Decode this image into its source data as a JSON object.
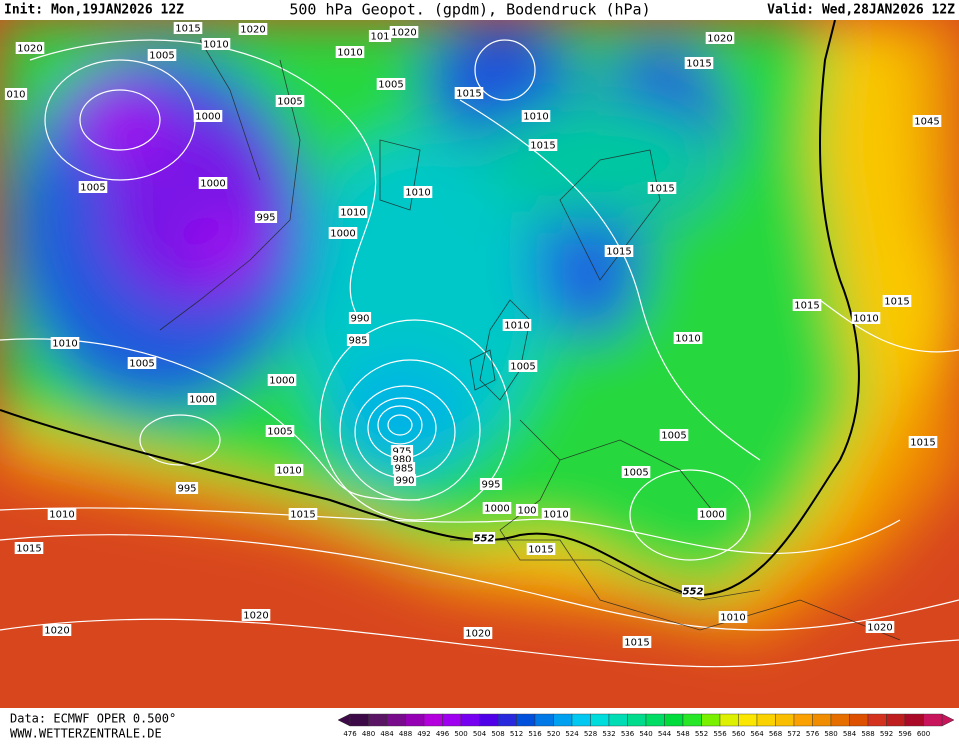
{
  "header": {
    "init": "Init: Mon,19JAN2026 12Z",
    "title": "500 hPa Geopot. (gpdm), Bodendruck (hPa)",
    "valid": "Valid: Wed,28JAN2026 12Z"
  },
  "footer": {
    "data": "Data: ECMWF OPER 0.500°",
    "site": "WWW.WETTERZENTRALE.DE"
  },
  "isobar_labels": [
    "1015",
    "1020",
    "1010",
    "1020",
    "1005",
    "010",
    "1010",
    "101",
    "1020",
    "1005",
    "1005",
    "1015",
    "1020",
    "1015",
    "1010",
    "1000",
    "1015",
    "1005",
    "1000",
    "1010",
    "1010",
    "1000",
    "995",
    "1015",
    "1015",
    "1045",
    "1015",
    "1015",
    "1010",
    "1010",
    "1005",
    "990",
    "985",
    "1010",
    "1010",
    "1000",
    "1005",
    "1000",
    "1005",
    "1005",
    "1015",
    "1010",
    "1005",
    "995",
    "995",
    "990",
    "975",
    "980",
    "985",
    "1010",
    "1015",
    "1000",
    "100",
    "1010",
    "1000",
    "1015",
    "1015",
    "1020",
    "1020",
    "1020",
    "1010",
    "1015",
    "1020",
    "552",
    "552"
  ],
  "colorbar": {
    "labels": [
      476,
      480,
      484,
      488,
      492,
      496,
      500,
      504,
      508,
      512,
      516,
      520,
      524,
      528,
      532,
      536,
      540,
      544,
      548,
      552,
      556,
      560,
      564,
      568,
      572,
      576,
      580,
      584,
      588,
      592,
      596,
      600
    ],
    "colors": [
      "#3c0a46",
      "#5a1464",
      "#780a8c",
      "#9600b4",
      "#b400dc",
      "#a000f0",
      "#7800f0",
      "#5000e6",
      "#2828dc",
      "#0050dc",
      "#0078e6",
      "#00a0f0",
      "#00c8f0",
      "#00dcdc",
      "#00dcb4",
      "#00dc8c",
      "#00dc64",
      "#00dc3c",
      "#28e628",
      "#78f000",
      "#dcf000",
      "#fae600",
      "#fad200",
      "#fabe00",
      "#faa000",
      "#f08c00",
      "#e66e00",
      "#dc5000",
      "#d2321e",
      "#be1e1e",
      "#aa0a28",
      "#c8145a"
    ]
  }
}
